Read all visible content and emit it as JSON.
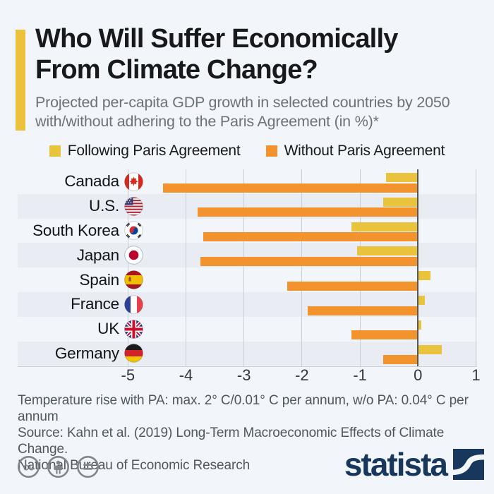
{
  "header": {
    "title_line1": "Who Will Suffer Economically",
    "title_line2": "From Climate Change?",
    "subtitle": "Projected per-capita GDP growth in selected countries by 2050 with/without adhering to the Paris Agreement (in %)*"
  },
  "legend": {
    "items": [
      {
        "label": "Following Paris Agreement",
        "color": "#EAC33D"
      },
      {
        "label": "Without Paris Agreement",
        "color": "#F3932E"
      }
    ]
  },
  "chart_data": {
    "type": "bar",
    "orientation": "horizontal",
    "title": "Who Will Suffer Economically From Climate Change?",
    "unit": "%",
    "categories": [
      "Canada",
      "U.S.",
      "South Korea",
      "Japan",
      "Spain",
      "France",
      "UK",
      "Germany"
    ],
    "flags": [
      "canada",
      "us",
      "south-korea",
      "japan",
      "spain",
      "france",
      "uk",
      "germany"
    ],
    "series": [
      {
        "name": "Following Paris Agreement",
        "color": "#EAC33D",
        "values": [
          -0.55,
          -0.6,
          -1.15,
          -1.05,
          0.2,
          0.1,
          0.05,
          0.4
        ]
      },
      {
        "name": "Without Paris Agreement",
        "color": "#F3932E",
        "values": [
          -4.4,
          -3.8,
          -3.7,
          -3.75,
          -2.25,
          -1.9,
          -1.15,
          -0.6
        ]
      }
    ],
    "x_ticks": [
      "-5",
      "-4",
      "-3",
      "-2",
      "-1",
      "0",
      "1"
    ],
    "xlim": [
      -5,
      1
    ],
    "grid": true,
    "legend_position": "top"
  },
  "footnote": {
    "line1": "Temperature rise with PA: max. 2° C/0.01° C per annum, w/o PA: 0.04° C per annum",
    "line2": "Source: Kahn et al. (2019) Long-Term Macroeconomic Effects of Climate Change.",
    "line3": "National Bureau of Economic Research"
  },
  "branding": {
    "logo_text": "statista",
    "logo_color": "#17375C",
    "accent_color": "#ECC23C",
    "cc_icons": [
      "cc",
      "attribution",
      "no-derivatives"
    ]
  }
}
